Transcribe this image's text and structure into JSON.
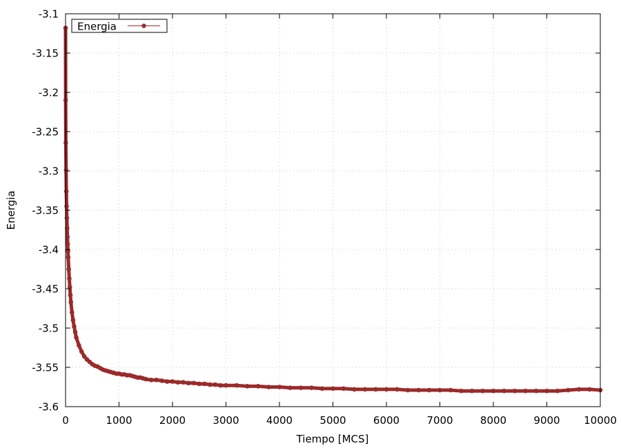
{
  "chart_data": {
    "type": "line",
    "title": "",
    "xlabel": "Tiempo [MCS]",
    "ylabel": "Energia",
    "xlim": [
      0,
      10000
    ],
    "ylim": [
      -3.6,
      -3.1
    ],
    "x_ticks": [
      0,
      1000,
      2000,
      3000,
      4000,
      5000,
      6000,
      7000,
      8000,
      9000,
      10000
    ],
    "y_ticks": [
      -3.6,
      -3.55,
      -3.5,
      -3.45,
      -3.4,
      -3.35,
      -3.3,
      -3.25,
      -3.2,
      -3.15,
      -3.1
    ],
    "x_tick_labels": [
      "0",
      "1000",
      "2000",
      "3000",
      "4000",
      "5000",
      "6000",
      "7000",
      "8000",
      "9000",
      "10000"
    ],
    "y_tick_labels": [
      "-3.6",
      "-3.55",
      "-3.5",
      "-3.45",
      "-3.4",
      "-3.35",
      "-3.3",
      "-3.25",
      "-3.2",
      "-3.15",
      "-3.1"
    ],
    "grid": true,
    "legend": {
      "position": "top-left",
      "entries": [
        "Energia"
      ]
    },
    "series": [
      {
        "name": "Energia",
        "color": "#9b2a2a",
        "marker": "circle",
        "x": [
          0,
          2,
          5,
          10,
          15,
          20,
          25,
          30,
          35,
          40,
          45,
          50,
          60,
          70,
          80,
          90,
          100,
          120,
          140,
          160,
          180,
          200,
          250,
          300,
          350,
          400,
          450,
          500,
          550,
          600,
          650,
          700,
          750,
          800,
          850,
          900,
          950,
          1000,
          1050,
          1100,
          1150,
          1200,
          1250,
          1300,
          1350,
          1400,
          1450,
          1500,
          1600,
          1700,
          1800,
          1900,
          2000,
          2100,
          2200,
          2300,
          2400,
          2500,
          2600,
          2700,
          2800,
          2900,
          3000,
          3200,
          3400,
          3600,
          3800,
          4000,
          4200,
          4400,
          4600,
          4800,
          5000,
          5200,
          5400,
          5600,
          5800,
          6000,
          6200,
          6400,
          6600,
          6800,
          7000,
          7200,
          7400,
          7600,
          7800,
          8000,
          8200,
          8400,
          8600,
          8800,
          9000,
          9200,
          9400,
          9600,
          9800,
          10000
        ],
        "y": [
          -3.118,
          -3.21,
          -3.264,
          -3.299,
          -3.326,
          -3.345,
          -3.36,
          -3.373,
          -3.384,
          -3.393,
          -3.402,
          -3.41,
          -3.425,
          -3.437,
          -3.448,
          -3.458,
          -3.467,
          -3.48,
          -3.49,
          -3.498,
          -3.505,
          -3.512,
          -3.522,
          -3.53,
          -3.536,
          -3.54,
          -3.543,
          -3.546,
          -3.548,
          -3.549,
          -3.551,
          -3.553,
          -3.554,
          -3.555,
          -3.556,
          -3.557,
          -3.558,
          -3.558,
          -3.559,
          -3.559,
          -3.56,
          -3.56,
          -3.561,
          -3.562,
          -3.563,
          -3.563,
          -3.564,
          -3.565,
          -3.566,
          -3.566,
          -3.567,
          -3.568,
          -3.568,
          -3.569,
          -3.569,
          -3.57,
          -3.57,
          -3.571,
          -3.571,
          -3.572,
          -3.572,
          -3.573,
          -3.573,
          -3.573,
          -3.574,
          -3.574,
          -3.575,
          -3.575,
          -3.576,
          -3.576,
          -3.576,
          -3.577,
          -3.577,
          -3.577,
          -3.578,
          -3.578,
          -3.578,
          -3.578,
          -3.578,
          -3.579,
          -3.579,
          -3.579,
          -3.579,
          -3.579,
          -3.58,
          -3.58,
          -3.58,
          -3.58,
          -3.58,
          -3.58,
          -3.58,
          -3.58,
          -3.58,
          -3.58,
          -3.579,
          -3.578,
          -3.578,
          -3.579
        ]
      }
    ]
  }
}
